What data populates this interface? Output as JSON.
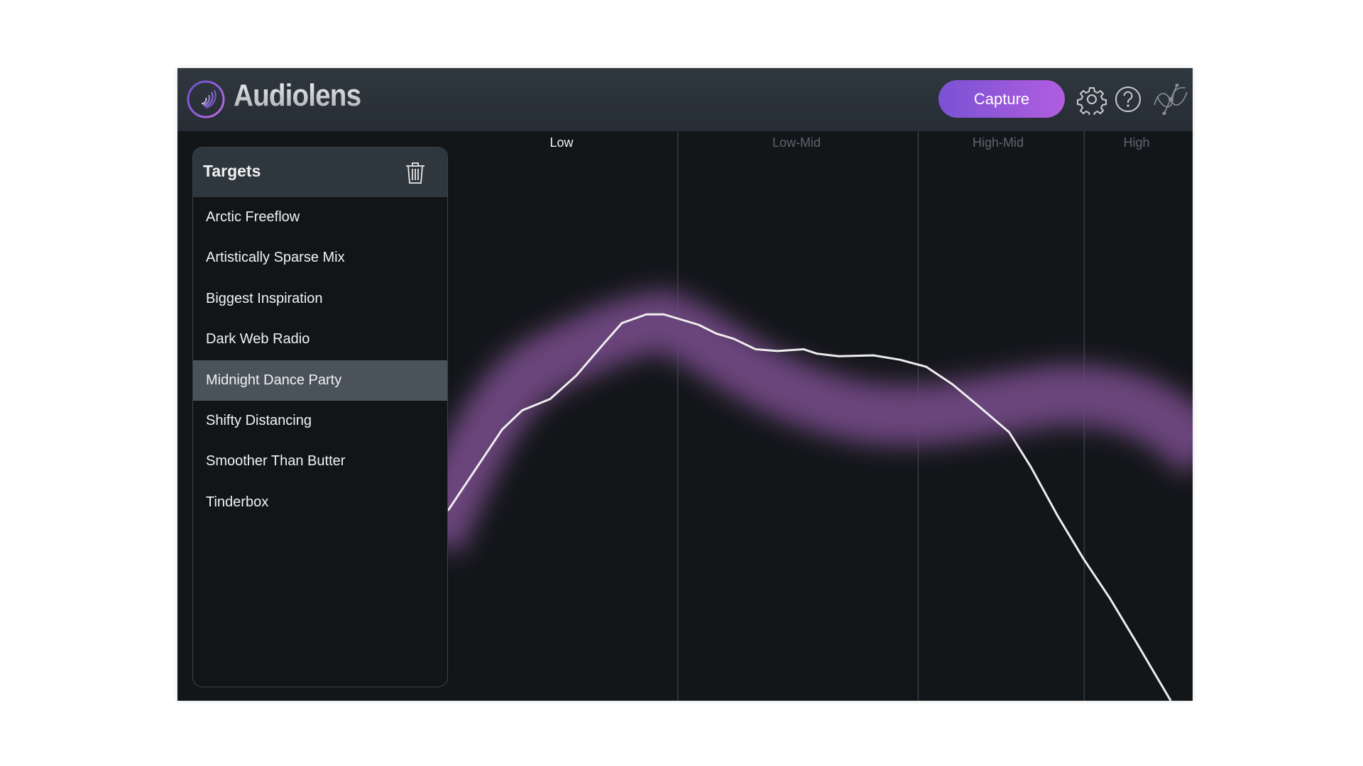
{
  "header": {
    "app_title": "Audiolens",
    "capture_label": "Capture",
    "icons": [
      "settings-gear-icon",
      "help-icon",
      "plugin-logo-icon"
    ]
  },
  "sidebar": {
    "title": "Targets",
    "items": [
      {
        "label": "Arctic Freeflow"
      },
      {
        "label": "Artistically Sparse Mix"
      },
      {
        "label": "Biggest Inspiration"
      },
      {
        "label": "Dark Web Radio"
      },
      {
        "label": "Midnight Dance Party",
        "selected": true
      },
      {
        "label": "Shifty Distancing"
      },
      {
        "label": "Smoother Than Butter"
      },
      {
        "label": "Tinderbox"
      }
    ]
  },
  "spectrum": {
    "bands": [
      "Low",
      "Low-Mid",
      "High-Mid",
      "High"
    ],
    "active_band": "Low",
    "colors": {
      "target_band": "#6a447c",
      "capture_curve": "#f0f0f0",
      "accent": "#9a58dc"
    }
  }
}
